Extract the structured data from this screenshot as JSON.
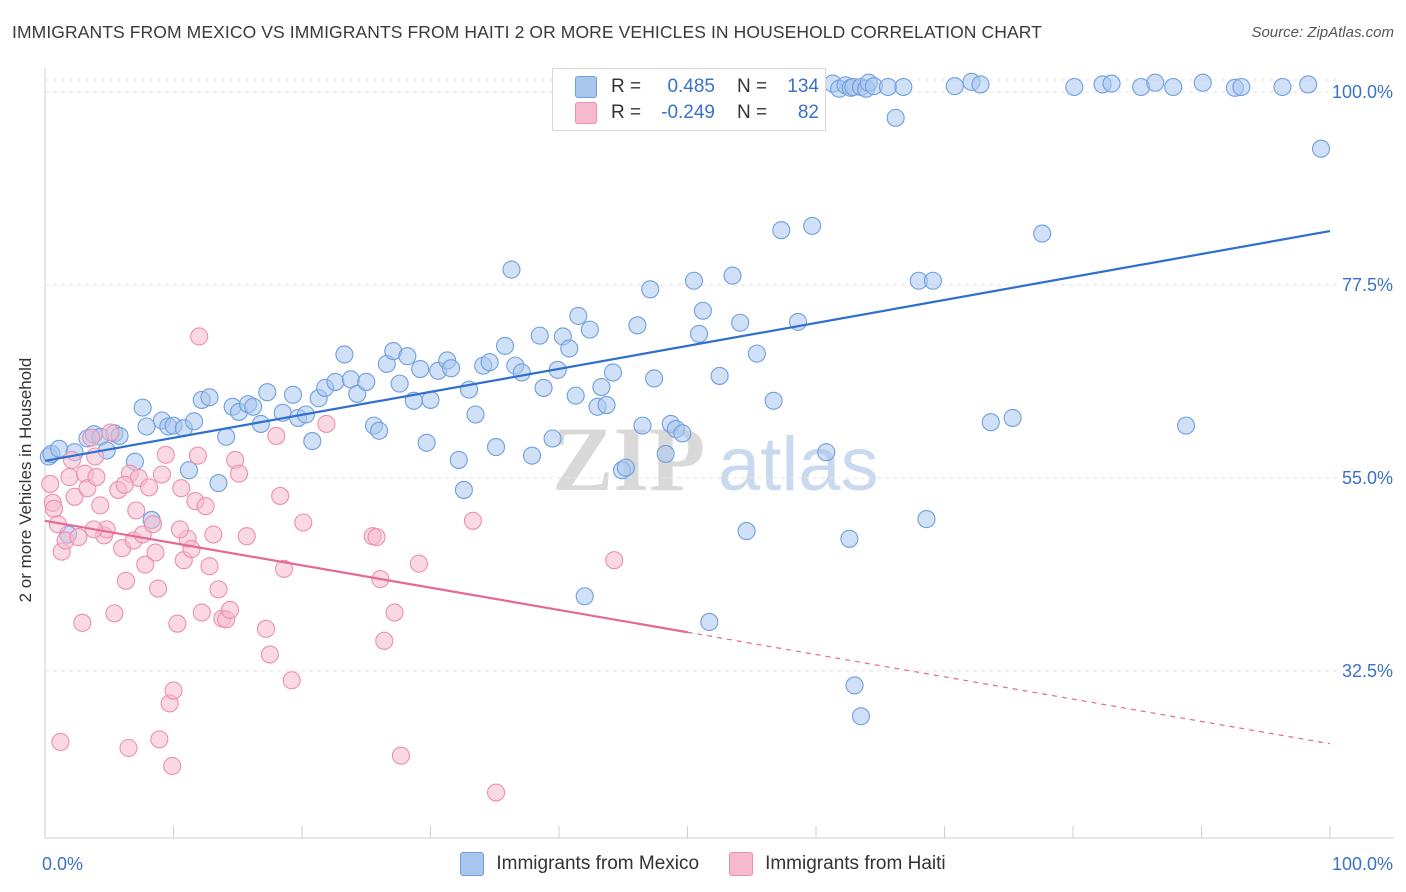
{
  "title": "IMMIGRANTS FROM MEXICO VS IMMIGRANTS FROM HAITI 2 OR MORE VEHICLES IN HOUSEHOLD CORRELATION CHART",
  "source": "Source: ZipAtlas.com",
  "watermark": {
    "zip": "ZIP",
    "atlas": "atlas"
  },
  "legend": {
    "r_label": "R =",
    "n_label": "N =",
    "mexico": {
      "r": "0.485",
      "n": "134"
    },
    "haiti": {
      "r": "-0.249",
      "n": "82"
    }
  },
  "colors": {
    "mexico_fill": "#a9c7ee",
    "mexico_stroke": "#6f9fde",
    "mexico_line": "#2f6fcd",
    "haiti_fill": "#f6b9cd",
    "haiti_stroke": "#ec8fae",
    "haiti_line": "#e46a94",
    "tick_label": "#3a72c8"
  },
  "chart_data": {
    "type": "scatter",
    "title": "IMMIGRANTS FROM MEXICO VS IMMIGRANTS FROM HAITI 2 OR MORE VEHICLES IN HOUSEHOLD CORRELATION CHART",
    "xlabel": "",
    "ylabel": "2 or more Vehicles in Household",
    "xlim": [
      0,
      100
    ],
    "ylim": [
      13,
      102
    ],
    "x_tick_labels": [
      {
        "value": 0,
        "label": "0.0%"
      },
      {
        "value": 100,
        "label": "100.0%"
      }
    ],
    "y_tick_labels": [
      {
        "value": 100,
        "label": "100.0%"
      },
      {
        "value": 77.5,
        "label": "77.5%"
      },
      {
        "value": 55,
        "label": "55.0%"
      },
      {
        "value": 32.5,
        "label": "32.5%"
      }
    ],
    "grid": "horizontal dashed",
    "legend_position": "top-center",
    "series": [
      {
        "name": "Immigrants from Mexico",
        "trendline": [
          [
            0,
            57.0
          ],
          [
            100,
            83.8
          ]
        ],
        "points": [
          [
            0.3,
            57.5
          ],
          [
            0.5,
            57.8
          ],
          [
            1.1,
            58.4
          ],
          [
            1.8,
            48.4
          ],
          [
            2.3,
            58.0
          ],
          [
            3.3,
            59.6
          ],
          [
            3.8,
            60.1
          ],
          [
            4.3,
            59.8
          ],
          [
            4.8,
            58.2
          ],
          [
            5.4,
            60.2
          ],
          [
            5.8,
            59.9
          ],
          [
            7.0,
            56.9
          ],
          [
            7.6,
            63.2
          ],
          [
            7.9,
            61.0
          ],
          [
            8.3,
            50.1
          ],
          [
            9.1,
            61.7
          ],
          [
            9.6,
            61.0
          ],
          [
            10.0,
            61.1
          ],
          [
            10.8,
            60.8
          ],
          [
            11.2,
            55.9
          ],
          [
            11.6,
            61.6
          ],
          [
            12.2,
            64.1
          ],
          [
            12.8,
            64.4
          ],
          [
            13.5,
            54.4
          ],
          [
            14.1,
            59.8
          ],
          [
            14.6,
            63.3
          ],
          [
            15.1,
            62.7
          ],
          [
            15.8,
            63.6
          ],
          [
            16.2,
            63.3
          ],
          [
            16.8,
            61.3
          ],
          [
            17.3,
            65.0
          ],
          [
            18.5,
            62.6
          ],
          [
            19.3,
            64.7
          ],
          [
            19.7,
            62.0
          ],
          [
            20.3,
            62.4
          ],
          [
            20.8,
            59.3
          ],
          [
            21.3,
            64.3
          ],
          [
            21.8,
            65.5
          ],
          [
            22.6,
            66.2
          ],
          [
            23.3,
            69.4
          ],
          [
            23.8,
            66.5
          ],
          [
            24.3,
            64.8
          ],
          [
            25.0,
            66.2
          ],
          [
            25.6,
            61.1
          ],
          [
            26.0,
            60.5
          ],
          [
            26.6,
            68.3
          ],
          [
            27.1,
            69.8
          ],
          [
            27.6,
            66.0
          ],
          [
            28.2,
            69.2
          ],
          [
            28.7,
            64.0
          ],
          [
            29.2,
            67.7
          ],
          [
            29.7,
            59.1
          ],
          [
            30.0,
            64.1
          ],
          [
            30.6,
            67.5
          ],
          [
            31.3,
            68.7
          ],
          [
            31.6,
            67.8
          ],
          [
            32.2,
            57.1
          ],
          [
            32.6,
            53.6
          ],
          [
            33.0,
            65.3
          ],
          [
            33.5,
            62.4
          ],
          [
            34.1,
            68.1
          ],
          [
            34.6,
            68.5
          ],
          [
            35.1,
            58.6
          ],
          [
            35.8,
            70.4
          ],
          [
            36.3,
            79.3
          ],
          [
            36.6,
            68.1
          ],
          [
            37.1,
            67.3
          ],
          [
            37.9,
            57.6
          ],
          [
            38.5,
            71.6
          ],
          [
            38.8,
            65.5
          ],
          [
            39.5,
            59.6
          ],
          [
            39.9,
            67.6
          ],
          [
            40.3,
            71.5
          ],
          [
            40.8,
            70.1
          ],
          [
            41.3,
            64.6
          ],
          [
            41.5,
            73.9
          ],
          [
            42.0,
            41.2
          ],
          [
            42.4,
            72.3
          ],
          [
            43.0,
            63.3
          ],
          [
            43.3,
            65.6
          ],
          [
            43.7,
            63.5
          ],
          [
            44.2,
            67.3
          ],
          [
            44.9,
            55.9
          ],
          [
            45.2,
            56.2
          ],
          [
            46.1,
            72.8
          ],
          [
            46.5,
            61.1
          ],
          [
            47.1,
            77.0
          ],
          [
            47.4,
            66.6
          ],
          [
            48.3,
            57.8
          ],
          [
            48.7,
            61.3
          ],
          [
            49.1,
            60.7
          ],
          [
            49.6,
            60.2
          ],
          [
            50.5,
            78.0
          ],
          [
            50.9,
            71.8
          ],
          [
            51.2,
            74.5
          ],
          [
            51.7,
            38.2
          ],
          [
            52.5,
            66.9
          ],
          [
            53.5,
            78.6
          ],
          [
            54.1,
            73.1
          ],
          [
            54.6,
            48.8
          ],
          [
            55.4,
            69.5
          ],
          [
            56.7,
            64.0
          ],
          [
            57.3,
            83.9
          ],
          [
            58.6,
            73.2
          ],
          [
            59.7,
            84.4
          ],
          [
            60.8,
            58.0
          ],
          [
            61.3,
            101.0
          ],
          [
            61.8,
            100.4
          ],
          [
            62.3,
            100.8
          ],
          [
            62.7,
            100.5
          ],
          [
            62.9,
            100.6
          ],
          [
            63.5,
            100.6
          ],
          [
            63.9,
            100.4
          ],
          [
            62.6,
            47.9
          ],
          [
            63.0,
            30.8
          ],
          [
            63.5,
            27.2
          ],
          [
            64.1,
            101.1
          ],
          [
            64.5,
            100.7
          ],
          [
            65.6,
            100.6
          ],
          [
            66.2,
            97.0
          ],
          [
            66.8,
            100.6
          ],
          [
            68.0,
            78.0
          ],
          [
            68.6,
            50.2
          ],
          [
            69.1,
            78.0
          ],
          [
            70.8,
            100.7
          ],
          [
            72.1,
            101.2
          ],
          [
            72.8,
            100.9
          ],
          [
            73.6,
            61.5
          ],
          [
            75.3,
            62.0
          ],
          [
            77.6,
            83.5
          ],
          [
            80.1,
            100.6
          ],
          [
            82.3,
            100.9
          ],
          [
            83.0,
            101.0
          ],
          [
            85.3,
            100.6
          ],
          [
            86.4,
            101.1
          ],
          [
            87.8,
            100.6
          ],
          [
            88.8,
            61.1
          ],
          [
            90.1,
            101.1
          ],
          [
            92.6,
            100.5
          ],
          [
            93.1,
            100.6
          ],
          [
            96.3,
            100.6
          ],
          [
            98.3,
            100.9
          ],
          [
            99.3,
            93.4
          ]
        ]
      },
      {
        "name": "Immigrants from Haiti",
        "trendline": [
          [
            0,
            50.0
          ],
          [
            50,
            37.0
          ]
        ],
        "trendline_extension": [
          [
            50,
            37.0
          ],
          [
            100,
            24.0
          ]
        ],
        "points": [
          [
            0.4,
            54.3
          ],
          [
            0.6,
            52.1
          ],
          [
            0.7,
            51.4
          ],
          [
            1.0,
            49.6
          ],
          [
            1.3,
            46.4
          ],
          [
            1.6,
            47.7
          ],
          [
            1.9,
            55.1
          ],
          [
            2.1,
            57.1
          ],
          [
            2.3,
            52.8
          ],
          [
            2.6,
            48.1
          ],
          [
            2.9,
            38.1
          ],
          [
            3.1,
            55.5
          ],
          [
            3.3,
            53.8
          ],
          [
            3.6,
            59.7
          ],
          [
            3.9,
            57.5
          ],
          [
            4.0,
            55.1
          ],
          [
            4.3,
            51.8
          ],
          [
            4.6,
            48.3
          ],
          [
            4.8,
            49.0
          ],
          [
            5.1,
            60.3
          ],
          [
            5.4,
            39.2
          ],
          [
            5.7,
            53.6
          ],
          [
            6.0,
            46.8
          ],
          [
            6.3,
            43.0
          ],
          [
            6.6,
            55.5
          ],
          [
            6.9,
            47.7
          ],
          [
            7.1,
            51.2
          ],
          [
            7.3,
            55.0
          ],
          [
            7.6,
            48.4
          ],
          [
            7.8,
            44.9
          ],
          [
            8.1,
            53.9
          ],
          [
            8.4,
            49.6
          ],
          [
            8.6,
            46.3
          ],
          [
            8.8,
            42.1
          ],
          [
            9.1,
            55.4
          ],
          [
            9.4,
            57.7
          ],
          [
            9.7,
            28.7
          ],
          [
            10.0,
            30.2
          ],
          [
            10.3,
            38.0
          ],
          [
            10.6,
            53.8
          ],
          [
            10.8,
            45.4
          ],
          [
            11.1,
            47.9
          ],
          [
            11.4,
            46.7
          ],
          [
            11.7,
            52.3
          ],
          [
            11.9,
            57.6
          ],
          [
            12.2,
            39.3
          ],
          [
            12.5,
            51.7
          ],
          [
            12.8,
            44.7
          ],
          [
            13.1,
            48.4
          ],
          [
            13.5,
            42.0
          ],
          [
            13.8,
            38.6
          ],
          [
            14.1,
            38.5
          ],
          [
            14.4,
            39.6
          ],
          [
            14.8,
            57.1
          ],
          [
            15.1,
            55.5
          ],
          [
            15.7,
            48.2
          ],
          [
            17.2,
            37.4
          ],
          [
            17.5,
            34.4
          ],
          [
            18.0,
            59.9
          ],
          [
            18.3,
            52.9
          ],
          [
            18.6,
            44.4
          ],
          [
            19.2,
            31.4
          ],
          [
            20.1,
            49.8
          ],
          [
            21.9,
            61.3
          ],
          [
            25.5,
            48.2
          ],
          [
            25.8,
            48.1
          ],
          [
            26.1,
            43.2
          ],
          [
            26.4,
            36.0
          ],
          [
            27.2,
            39.3
          ],
          [
            27.7,
            22.6
          ],
          [
            29.1,
            45.0
          ],
          [
            33.3,
            50.0
          ],
          [
            35.1,
            18.3
          ],
          [
            44.3,
            45.4
          ],
          [
            6.5,
            23.5
          ],
          [
            8.9,
            24.5
          ],
          [
            9.9,
            21.4
          ],
          [
            12.0,
            71.5
          ],
          [
            1.2,
            24.2
          ],
          [
            3.8,
            49.0
          ],
          [
            6.2,
            54.2
          ],
          [
            10.5,
            49.0
          ]
        ]
      }
    ]
  },
  "bottom_legend": {
    "mexico": "Immigrants from Mexico",
    "haiti": "Immigrants from Haiti"
  }
}
